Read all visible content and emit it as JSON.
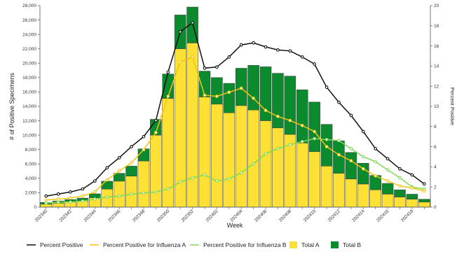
{
  "chart_data": {
    "type": "bar",
    "stacked": true,
    "xlabel": "Week",
    "ylabel": "# of Positive Specimens",
    "y2label": "Percent Positive",
    "ylim": [
      0,
      28000
    ],
    "y2lim": [
      0,
      20
    ],
    "yticks": [
      0,
      2000,
      4000,
      6000,
      8000,
      10000,
      12000,
      14000,
      16000,
      18000,
      20000,
      22000,
      24000,
      26000,
      28000
    ],
    "ytick_labels": [
      "0",
      "2,000",
      "4,000",
      "6,000",
      "8,000",
      "10,000",
      "12,000",
      "14,000",
      "16,000",
      "18,000",
      "20,000",
      "22,000",
      "24,000",
      "26,000",
      "28,000"
    ],
    "y2ticks": [
      0,
      2,
      4,
      6,
      8,
      10,
      12,
      14,
      16,
      18,
      20
    ],
    "weeks": [
      "202340",
      "202341",
      "202342",
      "202343",
      "202344",
      "202345",
      "202346",
      "202347",
      "202348",
      "202349",
      "202350",
      "202351",
      "202352",
      "202401",
      "202402",
      "202403",
      "202404",
      "202405",
      "202406",
      "202407",
      "202408",
      "202409",
      "202410",
      "202411",
      "202412",
      "202413",
      "202414",
      "202415",
      "202416",
      "202417",
      "202418",
      "202419"
    ],
    "xtick_labels": [
      "202340",
      "",
      "202342",
      "",
      "202344",
      "",
      "202346",
      "",
      "202348",
      "",
      "202350",
      "",
      "202352",
      "",
      "202402",
      "",
      "202404",
      "",
      "202406",
      "",
      "202408",
      "",
      "202410",
      "",
      "202412",
      "",
      "202414",
      "",
      "202416",
      "",
      "202418",
      ""
    ],
    "series": [
      {
        "name": "Total A",
        "kind": "bar",
        "color": "#ffe135",
        "values": [
          400,
          550,
          700,
          850,
          1300,
          2500,
          3600,
          4300,
          6400,
          10000,
          15100,
          22000,
          22800,
          15300,
          14300,
          13100,
          14100,
          13500,
          12000,
          11000,
          10100,
          8900,
          7700,
          5700,
          4700,
          3900,
          3200,
          2400,
          1800,
          1400,
          1100,
          700
        ]
      },
      {
        "name": "Total B",
        "kind": "bar",
        "color": "#0b8a2e",
        "values": [
          250,
          300,
          350,
          400,
          550,
          1100,
          1100,
          1400,
          1700,
          2200,
          3400,
          4700,
          5000,
          3600,
          3700,
          4100,
          5200,
          6200,
          7500,
          7600,
          8100,
          7400,
          6900,
          5800,
          4500,
          3700,
          2900,
          2000,
          1500,
          1000,
          700,
          400
        ]
      },
      {
        "name": "Percent Positive",
        "kind": "line",
        "color": "#111111",
        "values": [
          1.1,
          1.3,
          1.5,
          1.8,
          2.6,
          3.9,
          4.9,
          6.0,
          7.0,
          8.6,
          13.4,
          17.4,
          18.3,
          13.8,
          13.9,
          14.9,
          16.1,
          16.3,
          15.9,
          15.6,
          15.5,
          14.9,
          14.2,
          11.9,
          10.4,
          9.1,
          7.5,
          5.8,
          4.8,
          3.8,
          3.2,
          2.3
        ]
      },
      {
        "name": "Percent Positive for Influenza A",
        "kind": "line",
        "color": "#f2c40e",
        "values": [
          0.7,
          0.8,
          0.9,
          1.1,
          1.5,
          2.7,
          3.6,
          4.4,
          5.7,
          7.4,
          11.0,
          14.4,
          14.9,
          11.1,
          11.0,
          11.4,
          11.8,
          10.8,
          9.6,
          9.0,
          8.6,
          8.1,
          7.5,
          6.0,
          5.2,
          4.6,
          3.8,
          3.1,
          2.6,
          2.1,
          1.9,
          1.6
        ]
      },
      {
        "name": "Percent Positive for Influenza B",
        "kind": "line",
        "color": "#7ed957",
        "values": [
          0.4,
          0.5,
          0.5,
          0.6,
          0.8,
          1.0,
          1.1,
          1.3,
          1.4,
          1.5,
          1.8,
          2.5,
          2.9,
          3.2,
          2.6,
          2.8,
          3.4,
          4.3,
          5.3,
          5.8,
          6.2,
          6.5,
          6.8,
          6.7,
          6.6,
          5.8,
          5.0,
          4.5,
          3.7,
          2.9,
          2.0,
          1.8
        ]
      }
    ],
    "legend": {
      "position": "bottom"
    },
    "grid": false
  }
}
